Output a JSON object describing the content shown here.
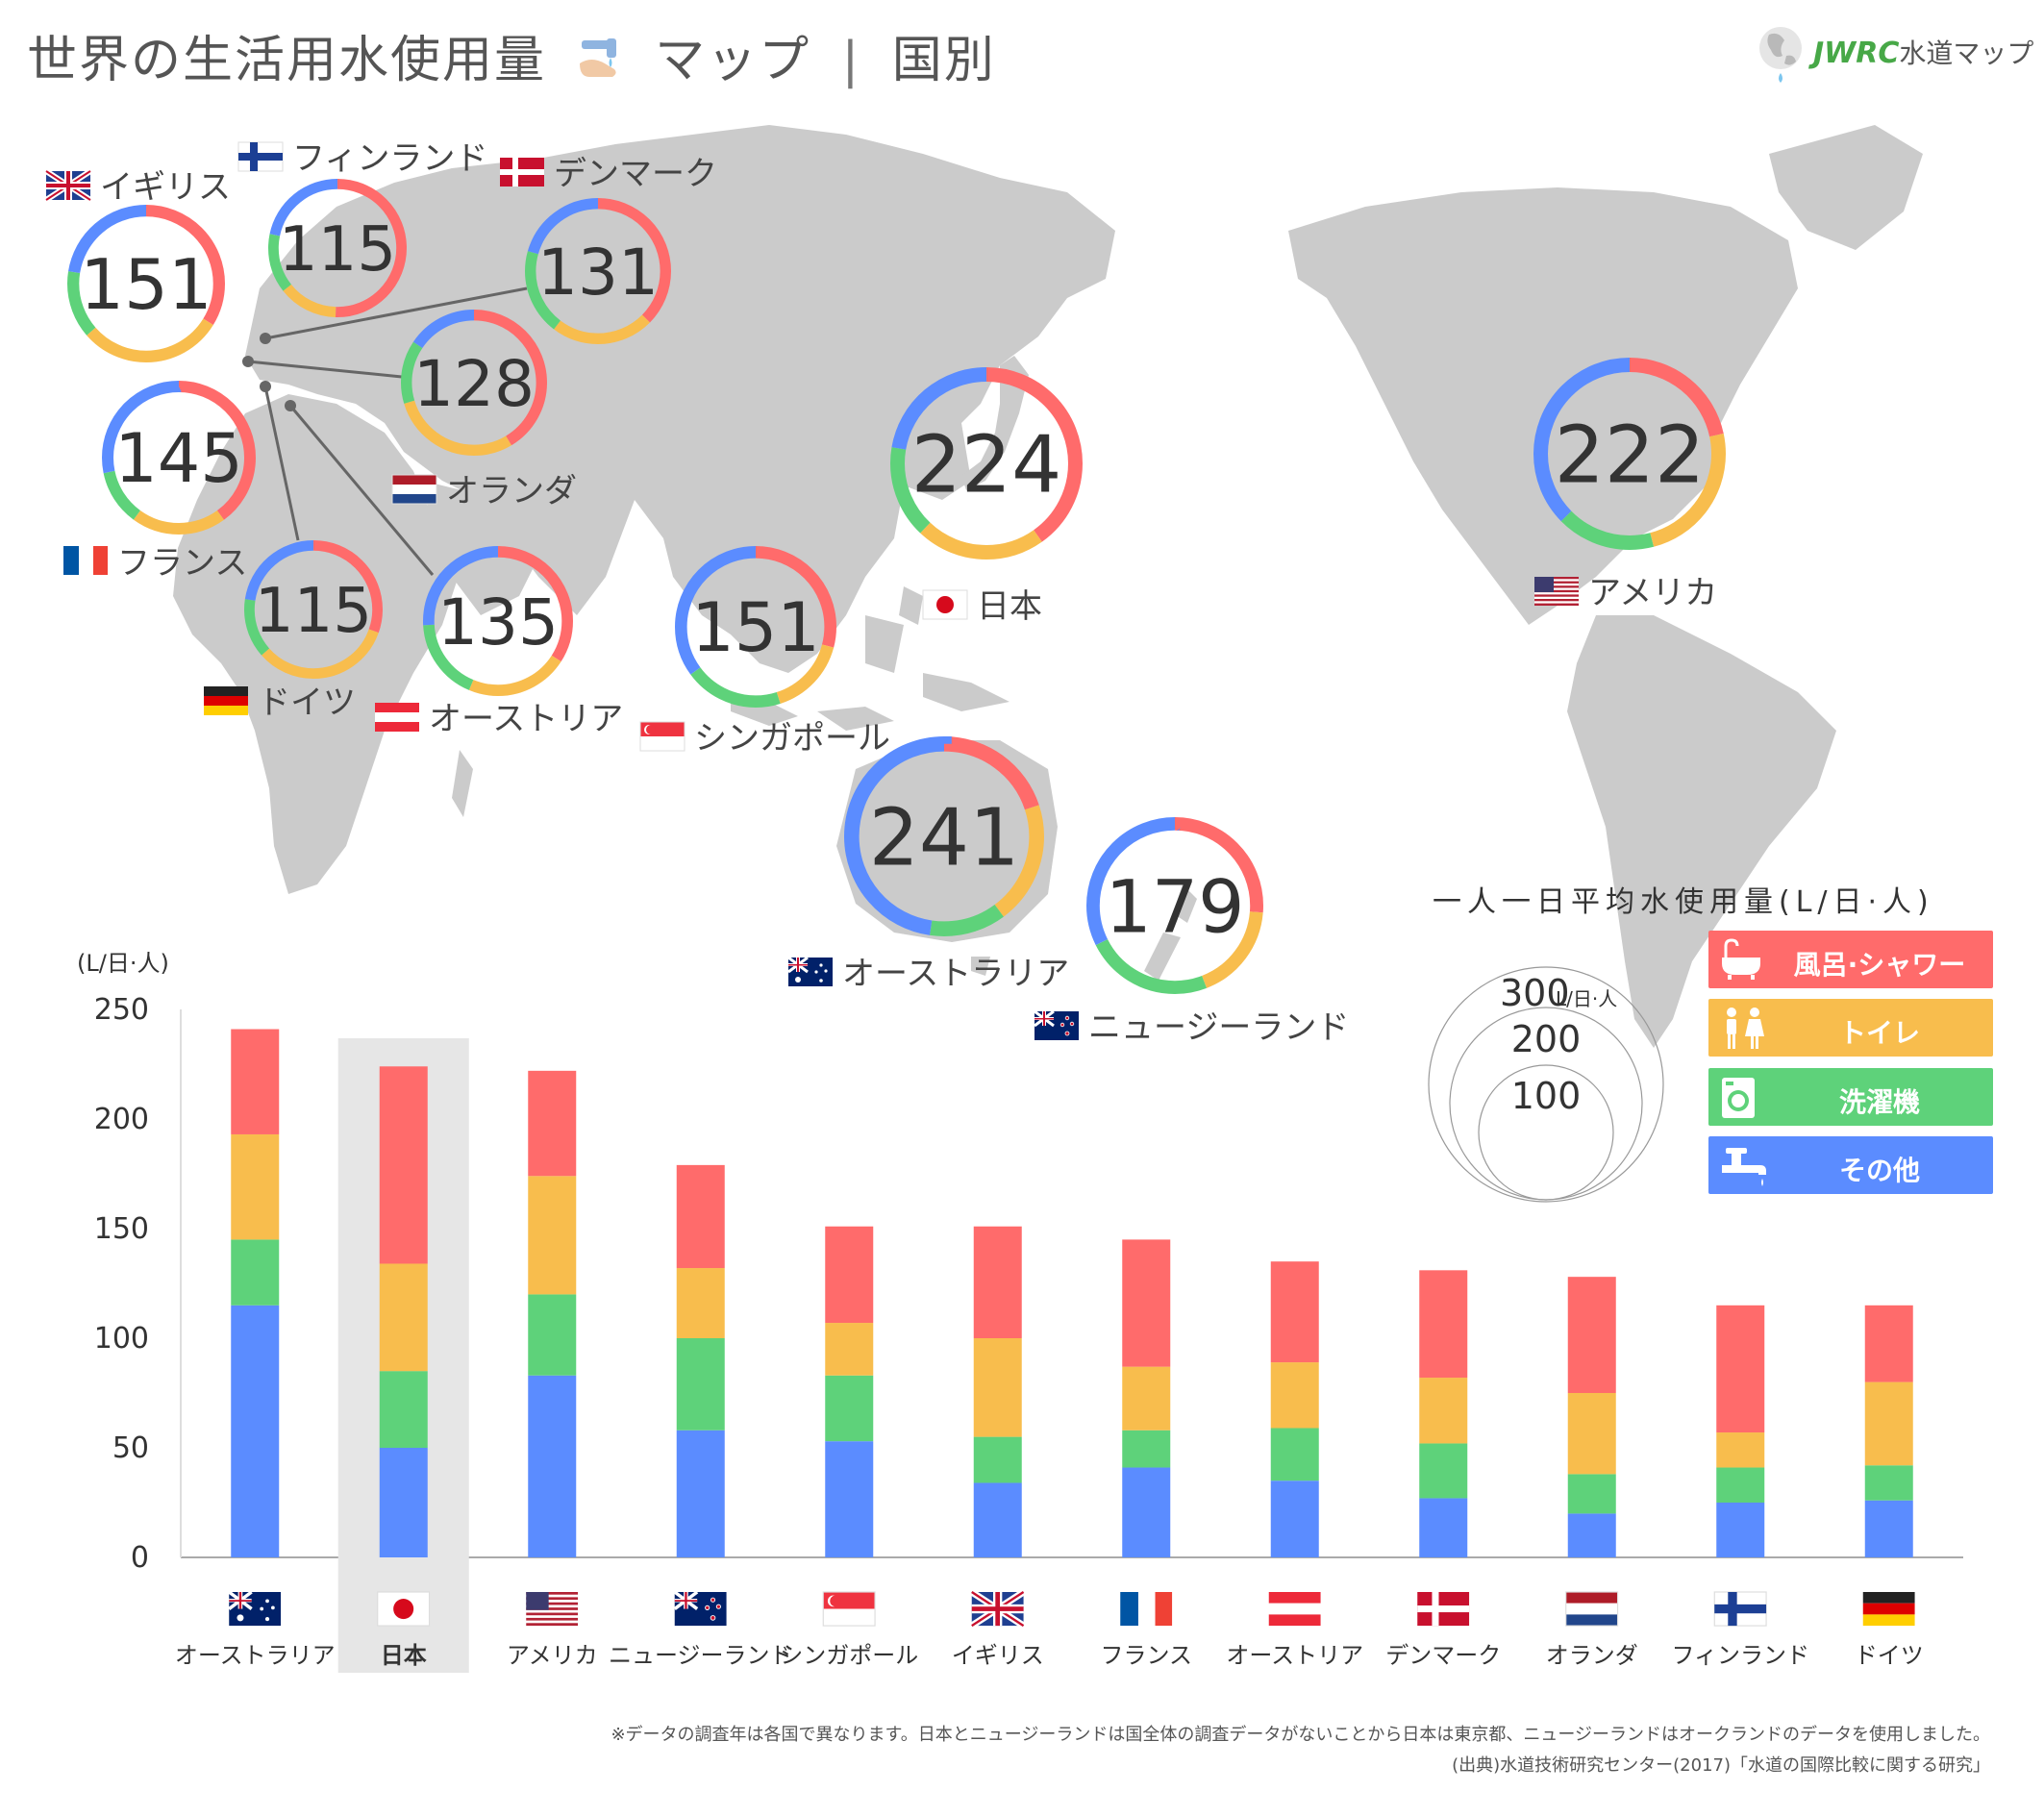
{
  "title": "世界の生活用水使用量",
  "title_suffix": "マップ",
  "title_sep": "|",
  "title_category": "国別",
  "logo": {
    "latin": "JWRC",
    "jp": "水道マップ"
  },
  "colors": {
    "bath": "#ff6b6b",
    "toilet": "#f8bd4d",
    "laundry": "#5ed27a",
    "other": "#5b8cff",
    "map": "#cbcbcb",
    "highlight": "#e6e6e6",
    "axis": "#aaaaaa"
  },
  "legend": {
    "title": "一人一日平均水使用量(L/日·人)",
    "items": [
      {
        "label": "風呂·シャワー",
        "icon": "bathtub-icon",
        "color": "#ff6b6b"
      },
      {
        "label": "トイレ",
        "icon": "toilet-people-icon",
        "color": "#f8bd4d"
      },
      {
        "label": "洗濯機",
        "icon": "washing-machine-icon",
        "color": "#5ed27a"
      },
      {
        "label": "その他",
        "icon": "faucet-icon",
        "color": "#5b8cff"
      }
    ],
    "scale_labels": [
      "300",
      "200",
      "100"
    ],
    "scale_unit": "L/日·人"
  },
  "notes": {
    "survey": "※データの調査年は各国で異なります。日本とニュージーランドは国全体の調査データがないことから日本は東京都、ニュージーランドはオークランドのデータを使用しました。",
    "source": "(出典)水道技術研究センター(2017)「水道の国際比較に関する研究」"
  },
  "map_items": [
    {
      "id": "uk",
      "label": "イギリス",
      "flag": "uk",
      "total": "151"
    },
    {
      "id": "finland",
      "label": "フィンランド",
      "flag": "finland",
      "total": "115"
    },
    {
      "id": "denmark",
      "label": "デンマーク",
      "flag": "denmark",
      "total": "131"
    },
    {
      "id": "netherlands",
      "label": "オランダ",
      "flag": "netherlands",
      "total": "128"
    },
    {
      "id": "france",
      "label": "フランス",
      "flag": "france",
      "total": "145"
    },
    {
      "id": "germany",
      "label": "ドイツ",
      "flag": "germany",
      "total": "115"
    },
    {
      "id": "austria",
      "label": "オーストリア",
      "flag": "austria",
      "total": "135"
    },
    {
      "id": "singapore",
      "label": "シンガポール",
      "flag": "singapore",
      "total": "151"
    },
    {
      "id": "japan",
      "label": "日本",
      "flag": "japan",
      "total": "224"
    },
    {
      "id": "usa",
      "label": "アメリカ",
      "flag": "usa",
      "total": "222"
    },
    {
      "id": "australia",
      "label": "オーストラリア",
      "flag": "australia",
      "total": "241"
    },
    {
      "id": "newzealand",
      "label": "ニュージーランド",
      "flag": "newzealand",
      "total": "179"
    }
  ],
  "chart_data": {
    "type": "bar",
    "stacked": true,
    "ylabel": "(L/日·人)",
    "ylim": [
      0,
      250
    ],
    "yticks": [
      0,
      50,
      100,
      150,
      200,
      250
    ],
    "grid": false,
    "legend_position": "right",
    "highlight": "日本",
    "categories": [
      "オーストラリア",
      "日本",
      "アメリカ",
      "ニュージーランド",
      "シンガポール",
      "イギリス",
      "フランス",
      "オーストリア",
      "デンマーク",
      "オランダ",
      "フィンランド",
      "ドイツ"
    ],
    "flags": [
      "australia",
      "japan",
      "usa",
      "newzealand",
      "singapore",
      "uk",
      "france",
      "austria",
      "denmark",
      "netherlands",
      "finland",
      "germany"
    ],
    "series": [
      {
        "name": "その他",
        "color": "#5b8cff",
        "values": [
          115,
          50,
          83,
          58,
          53,
          34,
          41,
          35,
          27,
          20,
          25,
          26
        ]
      },
      {
        "name": "洗濯機",
        "color": "#5ed27a",
        "values": [
          30,
          35,
          37,
          42,
          30,
          21,
          17,
          24,
          25,
          18,
          16,
          16
        ]
      },
      {
        "name": "トイレ",
        "color": "#f8bd4d",
        "values": [
          48,
          49,
          54,
          32,
          24,
          45,
          29,
          30,
          30,
          37,
          16,
          38
        ]
      },
      {
        "name": "風呂·シャワー",
        "color": "#ff6b6b",
        "values": [
          48,
          90,
          48,
          47,
          44,
          51,
          58,
          46,
          49,
          53,
          58,
          35
        ]
      }
    ],
    "totals": [
      241,
      224,
      222,
      179,
      151,
      151,
      145,
      135,
      131,
      128,
      115,
      115
    ]
  }
}
